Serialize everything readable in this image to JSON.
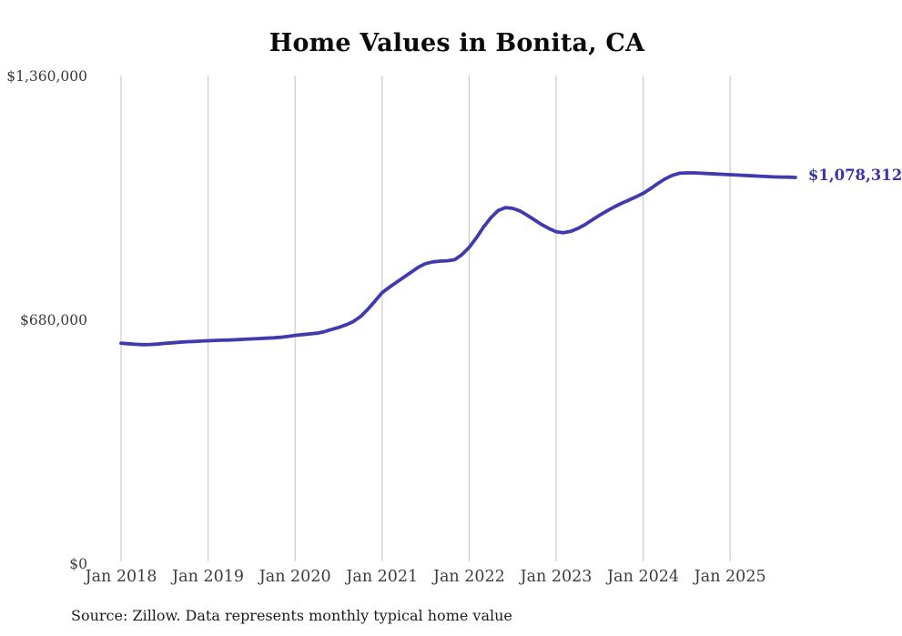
{
  "chart": {
    "title": "Home Values in Bonita, CA",
    "source": "Source: Zillow. Data represents monthly typical home value",
    "end_label": "$1,078,312",
    "y_axis": {
      "ticks": [
        {
          "label": "$1,360,000",
          "value": 1360000
        },
        {
          "label": "$680,000",
          "value": 680000
        },
        {
          "label": "$0",
          "value": 0
        }
      ]
    },
    "x_axis": {
      "ticks": [
        "Jan 2018",
        "Jan 2019",
        "Jan 2020",
        "Jan 2021",
        "Jan 2022",
        "Jan 2023",
        "Jan 2024",
        "Jan 2025"
      ]
    },
    "colors": {
      "line": "#403AAF",
      "end_label": "#3A35A8",
      "grid": "#CBCBCB",
      "title": "#0B0B0B",
      "axis_text": "#3D3D3D",
      "source_text": "#1C1C1C"
    }
  },
  "chart_data": {
    "type": "line",
    "title": "Home Values in Bonita, CA",
    "xlabel": "",
    "ylabel": "",
    "ylim": [
      0,
      1360000
    ],
    "grid": "vertical-yearly",
    "legend": false,
    "frequency": "monthly",
    "x_start": "2018-01",
    "x_end": "2025-10",
    "x": [
      "2018-01",
      "2018-02",
      "2018-03",
      "2018-04",
      "2018-05",
      "2018-06",
      "2018-07",
      "2018-08",
      "2018-09",
      "2018-10",
      "2018-11",
      "2018-12",
      "2019-01",
      "2019-02",
      "2019-03",
      "2019-04",
      "2019-05",
      "2019-06",
      "2019-07",
      "2019-08",
      "2019-09",
      "2019-10",
      "2019-11",
      "2019-12",
      "2020-01",
      "2020-02",
      "2020-03",
      "2020-04",
      "2020-05",
      "2020-06",
      "2020-07",
      "2020-08",
      "2020-09",
      "2020-10",
      "2020-11",
      "2020-12",
      "2021-01",
      "2021-02",
      "2021-03",
      "2021-04",
      "2021-05",
      "2021-06",
      "2021-07",
      "2021-08",
      "2021-09",
      "2021-10",
      "2021-11",
      "2021-12",
      "2022-01",
      "2022-02",
      "2022-03",
      "2022-04",
      "2022-05",
      "2022-06",
      "2022-07",
      "2022-08",
      "2022-09",
      "2022-10",
      "2022-11",
      "2022-12",
      "2023-01",
      "2023-02",
      "2023-03",
      "2023-04",
      "2023-05",
      "2023-06",
      "2023-07",
      "2023-08",
      "2023-09",
      "2023-10",
      "2023-11",
      "2023-12",
      "2024-01",
      "2024-02",
      "2024-03",
      "2024-04",
      "2024-05",
      "2024-06",
      "2024-07",
      "2024-08",
      "2024-09",
      "2024-10",
      "2024-11",
      "2024-12",
      "2025-01",
      "2025-02",
      "2025-03",
      "2025-04",
      "2025-05",
      "2025-06",
      "2025-07",
      "2025-08",
      "2025-09",
      "2025-10"
    ],
    "values": [
      616000,
      614500,
      613000,
      612000,
      612500,
      613500,
      615500,
      617000,
      618500,
      620000,
      621000,
      622000,
      623000,
      624000,
      624500,
      625000,
      626000,
      627000,
      628000,
      629000,
      630000,
      631000,
      632500,
      635000,
      638000,
      640000,
      642000,
      644000,
      648000,
      654000,
      660000,
      667000,
      676000,
      690000,
      710000,
      733000,
      757000,
      772000,
      786000,
      800000,
      814000,
      828000,
      838000,
      843000,
      845000,
      846000,
      849000,
      863000,
      883000,
      910000,
      940000,
      966000,
      986000,
      994000,
      992000,
      985000,
      973000,
      960000,
      947000,
      936000,
      927000,
      924000,
      928000,
      936000,
      947000,
      960000,
      973000,
      985000,
      996000,
      1006000,
      1015000,
      1024000,
      1034000,
      1047000,
      1061000,
      1074000,
      1084000,
      1090000,
      1091000,
      1091000,
      1090000,
      1089000,
      1088000,
      1087000,
      1086000,
      1085000,
      1084000,
      1083000,
      1082000,
      1081000,
      1080000,
      1079500,
      1079000,
      1078312
    ],
    "annotations": [
      {
        "text": "$1,078,312",
        "x": "2025-10",
        "y": 1078312
      }
    ]
  }
}
